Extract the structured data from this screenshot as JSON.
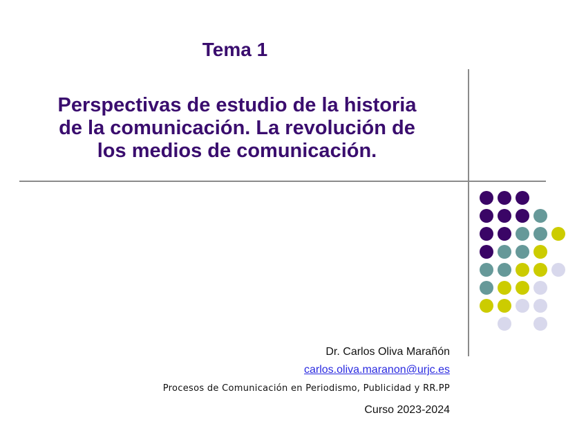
{
  "slide": {
    "tema": "Tema 1",
    "subtitle_lines": [
      "Perspectivas de estudio de la historia",
      "de la comunicación. La revolución de",
      "los medios de comunicación."
    ],
    "author": "Dr. Carlos Oliva Marañón",
    "email": "carlos.oliva.maranon@urjc.es",
    "course": "Procesos de Comunicación en Periodismo, Publicidad y RR.PP",
    "year": "Curso 2023-2024"
  },
  "colors": {
    "title": "#3a0d6e",
    "P": "#3a0566",
    "T": "#669999",
    "Y": "#cccc00",
    "L": "#d8d8ec"
  },
  "dot_grid": [
    "PPP..",
    "PPPT.",
    "PPTTY",
    "PTTY.",
    "TTYYL",
    "TYYL.",
    "YYLL.",
    ".L.L."
  ]
}
